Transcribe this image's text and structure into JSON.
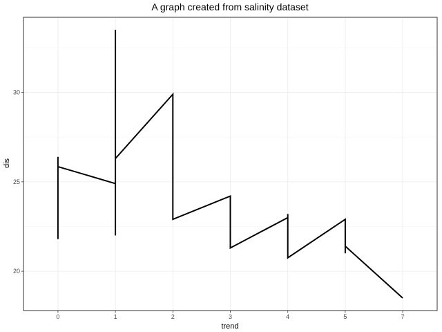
{
  "chart_data": {
    "type": "line",
    "title": "A graph created from salinity dataset",
    "xlabel": "trend",
    "ylabel": "dis",
    "categories": [
      "0",
      "1",
      "2",
      "3",
      "4",
      "5",
      "7"
    ],
    "xlim": [
      -0.6,
      6.6
    ],
    "ylim": [
      17.8,
      34.2
    ],
    "y_ticks": [
      20,
      25,
      30
    ],
    "grid": true,
    "legend": "none",
    "series": [
      {
        "color": "#000000",
        "points": [
          [
            "0",
            26.4
          ],
          [
            "0",
            21.8
          ],
          [
            "0",
            25.85
          ],
          [
            "1",
            24.9
          ],
          [
            "1",
            33.5
          ],
          [
            "1",
            22.0
          ],
          [
            "1",
            26.3
          ],
          [
            "2",
            29.9
          ],
          [
            "2",
            22.9
          ],
          [
            "3",
            24.2
          ],
          [
            "3",
            21.3
          ],
          [
            "4",
            23.0
          ],
          [
            "4",
            23.2
          ],
          [
            "4",
            20.75
          ],
          [
            "5",
            22.9
          ],
          [
            "5",
            21.0
          ],
          [
            "5",
            21.4
          ],
          [
            "7",
            18.5
          ]
        ]
      }
    ]
  }
}
